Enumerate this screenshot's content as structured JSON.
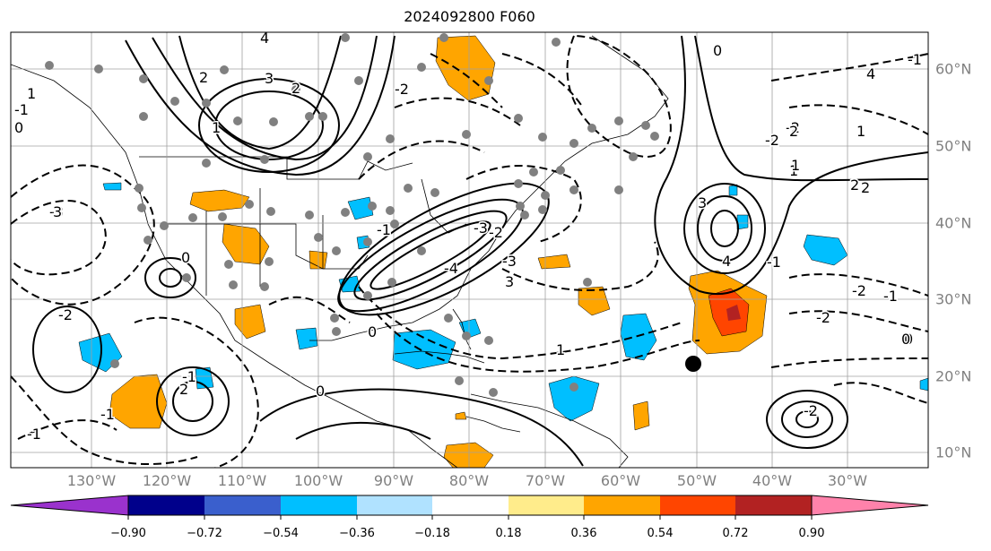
{
  "title": "2024092800 F060",
  "lon_labels": [
    "130°W",
    "120°W",
    "110°W",
    "100°W",
    "90°W",
    "80°W",
    "70°W",
    "60°W",
    "50°W",
    "40°W",
    "30°W"
  ],
  "lat_labels": [
    "60°N",
    "50°N",
    "40°N",
    "30°N",
    "20°N",
    "10°N"
  ],
  "colorbar": {
    "ticks": [
      "−0.90",
      "−0.72",
      "−0.54",
      "−0.36",
      "−0.18",
      "0.18",
      "0.36",
      "0.54",
      "0.72",
      "0.90"
    ],
    "colors": [
      "#9a32cd",
      "#00008b",
      "#3a5fcd",
      "#00bfff",
      "#b0e2ff",
      "#ffffff",
      "#ffec8b",
      "#ffa500",
      "#ff4500",
      "#b22222",
      "#ff82ab"
    ]
  },
  "contour_labels": [
    "4",
    "2",
    "3",
    "0",
    "-1",
    "1",
    "-2",
    "-3",
    "2",
    "1",
    "0",
    "-1",
    "-2",
    "3",
    "4",
    "0",
    "-2",
    "-4",
    "-3",
    "-2",
    "-1",
    "0",
    "1",
    "2",
    "-1",
    "-2",
    "1",
    "2",
    "0",
    "-1",
    "-3",
    "-2",
    "-1",
    "-2",
    "0",
    "-2",
    "-1",
    "-1",
    "2",
    "3",
    "1",
    "0",
    "1",
    "2",
    "3",
    "4"
  ],
  "colors": {
    "pos_contour": "#000000",
    "neg_contour": "#000000",
    "grid": "#a0a0a0",
    "station": "#808080",
    "marker": "#000000"
  }
}
